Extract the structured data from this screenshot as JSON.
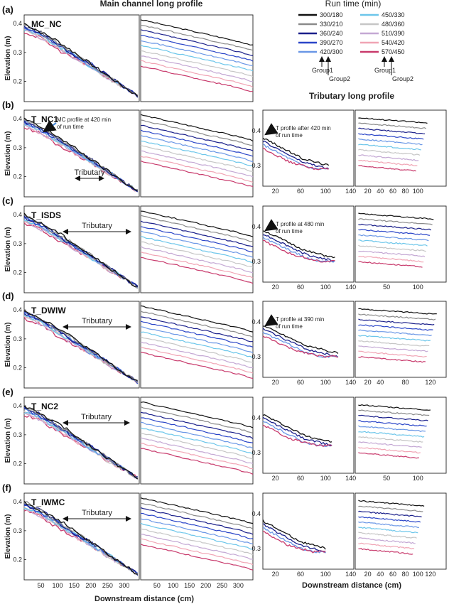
{
  "figure": {
    "header_main": "Main channel long profile",
    "header_trib": "Tributary long profile",
    "legend_title": "Run time (min)",
    "y_label": "Elevation (m)",
    "x_label": "Downstream distance (cm)",
    "x_label_trib": "Downstream distance (cm)",
    "group1": "Group1",
    "group2": "Group2",
    "tributary_label": "Tributary"
  },
  "legend": [
    {
      "label": "300/180",
      "color": "#111111"
    },
    {
      "label": "330/210",
      "color": "#8a8a8a"
    },
    {
      "label": "360/240",
      "color": "#1a1f8a"
    },
    {
      "label": "390/270",
      "color": "#2a45c8"
    },
    {
      "label": "420/300",
      "color": "#6a97e6"
    },
    {
      "label": "450/330",
      "color": "#6cc6ea"
    },
    {
      "label": "480/360",
      "color": "#c6c6c6"
    },
    {
      "label": "510/390",
      "color": "#c4a8d4"
    },
    {
      "label": "540/420",
      "color": "#f0a4b4"
    },
    {
      "label": "570/450",
      "color": "#c83a6c"
    }
  ],
  "panels": [
    {
      "label": "(a)",
      "title": "MC_NC"
    },
    {
      "label": "(b)",
      "title": "T_NC1",
      "annot_main": [
        "MC profile at 420 min",
        "of run time"
      ],
      "annot_trib": [
        "T profile after 420 min",
        "of run time"
      ]
    },
    {
      "label": "(c)",
      "title": "T_ISDS",
      "annot_trib": [
        "T profile at 480 min",
        "of run time"
      ]
    },
    {
      "label": "(d)",
      "title": "T_DWIW",
      "annot_trib": [
        "T profile at 390 min",
        "of run time"
      ]
    },
    {
      "label": "(e)",
      "title": "T_NC2"
    },
    {
      "label": "(f)",
      "title": "T_IWMC"
    }
  ],
  "chart_data": [
    {
      "type": "line",
      "title": "Main channel long profile",
      "xlabel": "Downstream distance (cm)",
      "ylabel": "Elevation (m)",
      "xlim": [
        0,
        345
      ],
      "ylim": [
        0.13,
        0.43
      ],
      "x_ticks": [
        50,
        100,
        150,
        200,
        250,
        300
      ],
      "y_ticks": [
        0.2,
        0.3,
        0.4
      ],
      "series_note": "Run time (min), Group1/Group2",
      "series": [
        {
          "name": "300/180",
          "x": [
            0,
            50,
            100,
            150,
            200,
            250,
            300,
            340
          ],
          "y": [
            0.4,
            0.37,
            0.34,
            0.3,
            0.26,
            0.22,
            0.18,
            0.15
          ]
        },
        {
          "name": "330/210",
          "x": [
            0,
            50,
            100,
            150,
            200,
            250,
            300,
            340
          ],
          "y": [
            0.4,
            0.37,
            0.33,
            0.3,
            0.26,
            0.22,
            0.18,
            0.15
          ]
        },
        {
          "name": "360/240",
          "x": [
            0,
            50,
            100,
            150,
            200,
            250,
            300,
            340
          ],
          "y": [
            0.39,
            0.37,
            0.33,
            0.29,
            0.26,
            0.22,
            0.18,
            0.15
          ]
        },
        {
          "name": "390/270",
          "x": [
            0,
            50,
            100,
            150,
            200,
            250,
            300,
            340
          ],
          "y": [
            0.39,
            0.36,
            0.33,
            0.29,
            0.26,
            0.22,
            0.18,
            0.15
          ]
        },
        {
          "name": "420/300",
          "x": [
            0,
            50,
            100,
            150,
            200,
            250,
            300,
            340
          ],
          "y": [
            0.39,
            0.36,
            0.33,
            0.29,
            0.25,
            0.22,
            0.18,
            0.15
          ]
        },
        {
          "name": "450/330",
          "x": [
            0,
            50,
            100,
            150,
            200,
            250,
            300,
            340
          ],
          "y": [
            0.38,
            0.36,
            0.32,
            0.29,
            0.25,
            0.22,
            0.18,
            0.15
          ]
        },
        {
          "name": "480/360",
          "x": [
            0,
            50,
            100,
            150,
            200,
            250,
            300,
            340
          ],
          "y": [
            0.38,
            0.36,
            0.32,
            0.29,
            0.25,
            0.21,
            0.18,
            0.15
          ]
        },
        {
          "name": "510/390",
          "x": [
            0,
            50,
            100,
            150,
            200,
            250,
            300,
            340
          ],
          "y": [
            0.38,
            0.35,
            0.32,
            0.28,
            0.25,
            0.21,
            0.18,
            0.15
          ]
        },
        {
          "name": "540/420",
          "x": [
            0,
            50,
            100,
            150,
            200,
            250,
            300,
            340
          ],
          "y": [
            0.38,
            0.35,
            0.32,
            0.28,
            0.25,
            0.21,
            0.18,
            0.15
          ]
        },
        {
          "name": "570/450",
          "x": [
            0,
            50,
            100,
            150,
            200,
            250,
            300,
            340
          ],
          "y": [
            0.37,
            0.35,
            0.31,
            0.28,
            0.25,
            0.21,
            0.18,
            0.15
          ]
        }
      ]
    },
    {
      "type": "line",
      "title": "Tributary long profile",
      "xlabel": "Downstream distance (cm)",
      "ylabel": "Elevation (m)",
      "xlim": [
        0,
        145
      ],
      "ylim": [
        0.24,
        0.46
      ],
      "x_ticks": [
        20,
        40,
        60,
        80,
        100,
        120,
        140
      ],
      "y_ticks": [
        0.3,
        0.4
      ],
      "series": [
        {
          "name": "300/180",
          "x": [
            0,
            20,
            40,
            60,
            80,
            100
          ],
          "y": [
            0.35,
            0.33,
            0.31,
            0.29,
            0.28,
            0.27
          ]
        },
        {
          "name": "360/240",
          "x": [
            0,
            20,
            40,
            60,
            80,
            100
          ],
          "y": [
            0.34,
            0.32,
            0.3,
            0.28,
            0.27,
            0.26
          ]
        },
        {
          "name": "420/300",
          "x": [
            0,
            20,
            40,
            60,
            80,
            100
          ],
          "y": [
            0.33,
            0.31,
            0.29,
            0.27,
            0.26,
            0.26
          ]
        },
        {
          "name": "570/450",
          "x": [
            0,
            20,
            40,
            60,
            80,
            100
          ],
          "y": [
            0.32,
            0.3,
            0.28,
            0.27,
            0.26,
            0.26
          ]
        }
      ]
    }
  ]
}
